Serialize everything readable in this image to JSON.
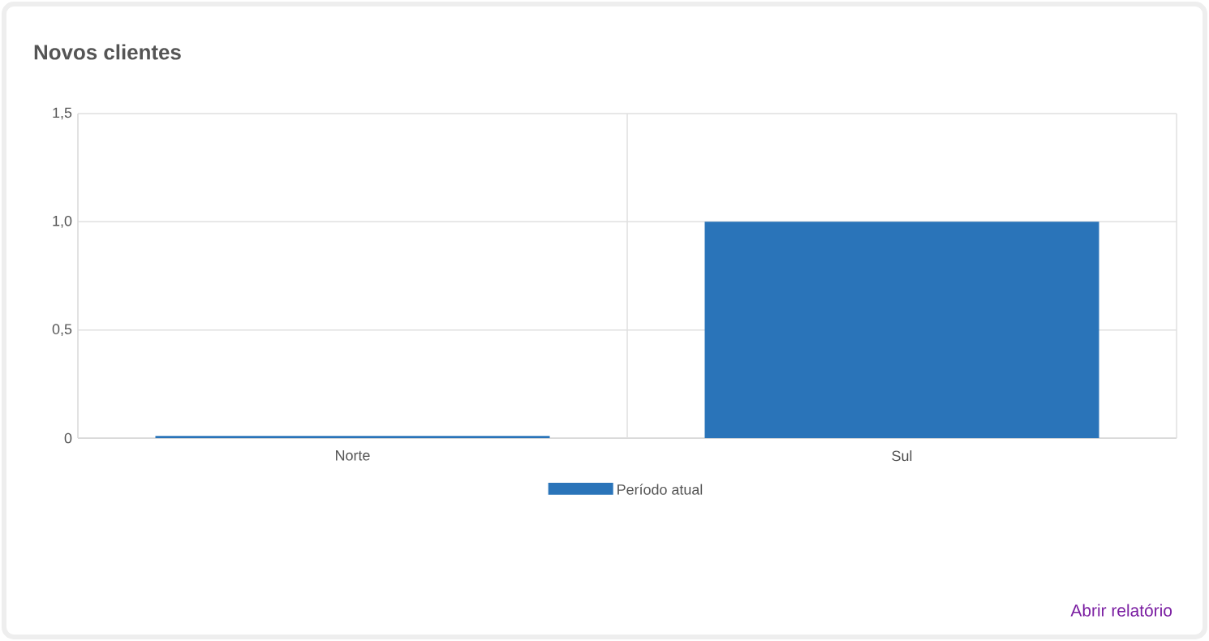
{
  "chart_data": {
    "type": "bar",
    "title": "Novos clientes",
    "categories": [
      "Norte",
      "Sul"
    ],
    "series": [
      {
        "name": "Período atual",
        "color": "#2a74b9",
        "values": [
          0.01,
          1
        ]
      }
    ],
    "ylim": [
      0,
      1.5
    ],
    "yticks": [
      0,
      {
        "value": 0.5,
        "label": "0,5"
      },
      {
        "value": 1,
        "label": "1,0"
      },
      {
        "value": 1.5,
        "label": "1,5"
      }
    ],
    "grid": true,
    "legend": "bottom",
    "annotations": [
      "Abrir relatório"
    ]
  }
}
